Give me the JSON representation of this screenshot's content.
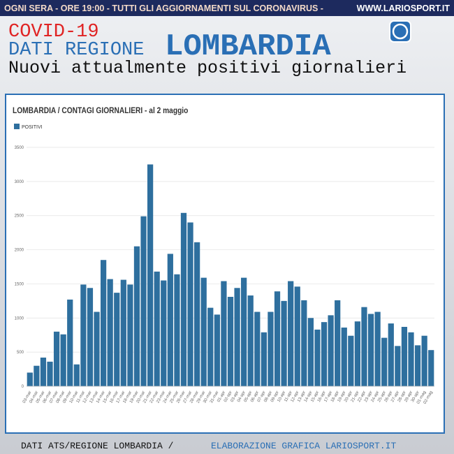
{
  "header": {
    "banner": "OGNI SERA - ORE 19:00 - TUTTI GLI AGGIORNAMENTI SUL CORONAVIRUS -",
    "site": "WWW.LARIOSPORT.IT",
    "kicker": "COVID-19",
    "region_label": "DATI REGIONE",
    "region": "LOMBARDIA",
    "subtitle": "Nuovi attualmente positivi giornalieri"
  },
  "footer": {
    "source": "DATI ATS/REGIONE LOMBARDIA /",
    "credit": "ELABORAZIONE GRAFICA LARIOSPORT.IT"
  },
  "chart_data": {
    "type": "bar",
    "title": "LOMBARDIA / CONTAGI GIORNALIERI - al 2 maggio",
    "categories": [
      "03-mar",
      "04-mar",
      "05-mar",
      "06-mar",
      "07-mar",
      "08-mar",
      "09-mar",
      "10-mar",
      "11-mar",
      "12-mar",
      "13-mar",
      "14-mar",
      "15-mar",
      "16-mar",
      "17-mar",
      "18-mar",
      "19-mar",
      "20-mar",
      "21-mar",
      "22-mar",
      "23-mar",
      "24-mar",
      "25-mar",
      "26-mar",
      "27-mar",
      "28-mar",
      "29-mar",
      "30-mar",
      "31-mar",
      "01-apr",
      "02-apr",
      "03-apr",
      "04-apr",
      "05-apr",
      "06-apr",
      "07-apr",
      "08-apr",
      "09-apr",
      "10-apr",
      "11-apr",
      "12-apr",
      "13-apr",
      "14-apr",
      "15-apr",
      "16-apr",
      "17-apr",
      "18-apr",
      "19-apr",
      "20-apr",
      "21-apr",
      "22-apr",
      "23-apr",
      "24-apr",
      "25-apr",
      "26-apr",
      "27-apr",
      "28-apr",
      "29-apr",
      "30-apr",
      "01-mag",
      "02-mag"
    ],
    "series": [
      {
        "name": "POSITIVI",
        "color": "#2e6f9e",
        "values": [
          200,
          300,
          420,
          360,
          800,
          760,
          1270,
          320,
          1490,
          1440,
          1090,
          1850,
          1570,
          1370,
          1560,
          1490,
          2050,
          2490,
          3250,
          1680,
          1550,
          1940,
          1640,
          2540,
          2400,
          2110,
          1590,
          1150,
          1050,
          1540,
          1310,
          1440,
          1590,
          1330,
          1090,
          790,
          1090,
          1390,
          1250,
          1540,
          1460,
          1260,
          1000,
          830,
          940,
          1040,
          1260,
          860,
          740,
          950,
          1160,
          1060,
          1090,
          710,
          920,
          590,
          870,
          790,
          600,
          740,
          530
        ]
      }
    ],
    "ylim": [
      0,
      3500
    ],
    "yticks": [
      0,
      500,
      1000,
      1500,
      2000,
      2500,
      3000,
      3500
    ],
    "grid": true,
    "legend": "top-left"
  }
}
